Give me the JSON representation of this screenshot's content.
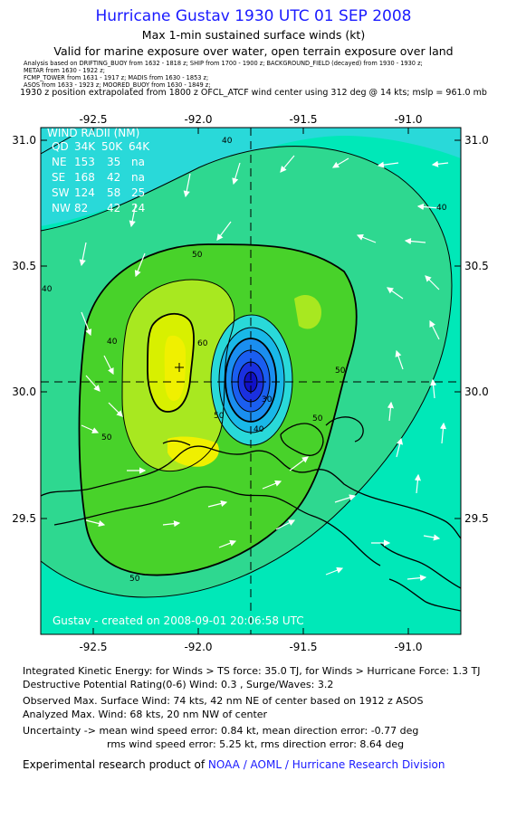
{
  "header": {
    "title": "Hurricane Gustav 1930 UTC 01 SEP 2008",
    "subtitle1": "Max 1-min sustained surface winds (kt)",
    "subtitle2": "Valid for marine exposure over water, open terrain exposure over land",
    "sources": [
      "Analysis based on DRIFTING_BUOY from 1632 - 1818 z; SHIP from 1700 - 1900 z; BACKGROUND_FIELD (decayed) from 1930 - 1930 z;",
      "METAR from 1630 - 1922 z;",
      "FCMP_TOWER from 1631 - 1917 z; MADIS from 1630 - 1853 z;",
      "ASOS from 1633 - 1923 z; MOORED_BUOY from 1630 - 1849 z;"
    ],
    "extrapolation": "1930 z position extrapolated from 1800 z OFCL_ATCF wind center using 312 deg @ 14 kts; mslp = 961.0 mb"
  },
  "map": {
    "lon_ticks": [
      "-92.5",
      "-92.0",
      "-91.5",
      "-91.0"
    ],
    "lat_ticks": [
      "31.0",
      "30.5",
      "30.0",
      "29.5"
    ],
    "lon_range": [
      -92.75,
      -90.75
    ],
    "lat_range": [
      29.05,
      31.05
    ],
    "center": {
      "lon": -91.72,
      "lat": 30.04
    },
    "contour_labels": [
      "40",
      "40",
      "40",
      "50",
      "50",
      "50",
      "50",
      "60",
      "50",
      "30",
      "40",
      "50",
      "40"
    ],
    "credit": "Gustav - created on 2008-09-01 20:06:58 UTC",
    "colors": {
      "ocean_low": "#29d9d9",
      "band_40": "#00e8b8",
      "band_50": "#2ed890",
      "band_55": "#48d22a",
      "band_60": "#a8e820",
      "band_65": "#f0f000",
      "eye": "#1010c8"
    }
  },
  "wind_radii": {
    "title": "WIND RADII (NM)",
    "header": [
      "QD",
      "34K",
      "50K",
      "64K"
    ],
    "rows": [
      [
        "NE",
        "153",
        "35",
        "na"
      ],
      [
        "SE",
        "168",
        "42",
        "na"
      ],
      [
        "SW",
        "124",
        "58",
        "25"
      ],
      [
        "NW",
        "82",
        "42",
        "24"
      ]
    ]
  },
  "footer": {
    "ike": "Integrated Kinetic Energy:  for Winds > TS force: 35.0 TJ,  for Winds > Hurricane Force: 1.3 TJ",
    "dpr": "Destructive Potential Rating(0-6)   Wind: 0.3 , Surge/Waves: 3.2",
    "observed": "Observed Max. Surface Wind: 74 kts, 42 nm NE of center based on 1912 z ASOS",
    "analyzed": "Analyzed Max. Wind: 68 kts, 20 nm NW of center",
    "uncertainty1": "Uncertainty -> mean wind speed error:  0.84 kt,   mean direction error:  -0.77 deg",
    "uncertainty2": "rms wind speed error:  5.25 kt,   rms direction error:  8.64 deg",
    "product_prefix": "Experimental research product of ",
    "product_link": "NOAA / AOML / Hurricane Research Division"
  }
}
